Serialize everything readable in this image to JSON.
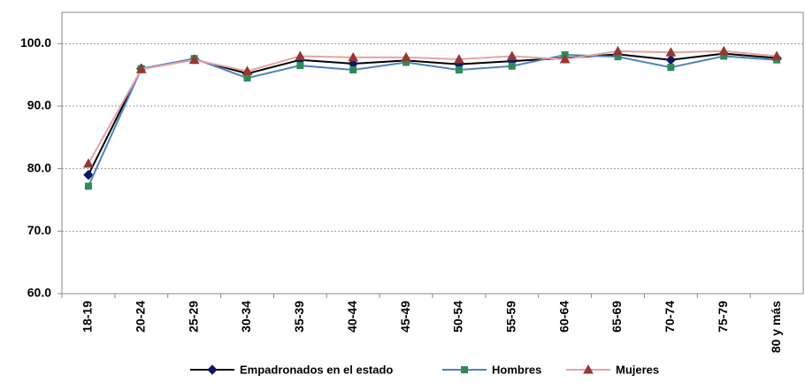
{
  "chart_data": {
    "type": "line",
    "categories": [
      "18-19",
      "20-24",
      "25-29",
      "30-34",
      "35-39",
      "40-44",
      "45-49",
      "50-54",
      "55-59",
      "60-64",
      "65-69",
      "70-74",
      "75-79",
      "80 y más"
    ],
    "series": [
      {
        "name": "Empadronados en el estado",
        "color": "#000000",
        "marker_color": "#0c1a66",
        "marker": "diamond",
        "values": [
          79.0,
          96.0,
          97.5,
          95.2,
          97.4,
          96.8,
          97.3,
          96.7,
          97.2,
          97.7,
          98.3,
          97.4,
          98.4,
          97.7
        ]
      },
      {
        "name": "Hombres",
        "color": "#4f81bd",
        "marker_color": "#2e8b57",
        "marker": "square",
        "values": [
          77.2,
          96.0,
          97.6,
          94.5,
          96.5,
          95.8,
          97.0,
          95.8,
          96.4,
          98.2,
          97.9,
          96.2,
          98.0,
          97.4
        ]
      },
      {
        "name": "Mujeres",
        "color": "#e6a3a3",
        "marker_color": "#953735",
        "marker": "triangle",
        "values": [
          80.8,
          95.9,
          97.4,
          95.6,
          98.0,
          97.8,
          97.8,
          97.5,
          98.0,
          97.5,
          98.8,
          98.6,
          98.8,
          98.0
        ]
      }
    ],
    "ylim": [
      60,
      105
    ],
    "yticks": [
      {
        "value": 60,
        "label": "60.0"
      },
      {
        "value": 70,
        "label": "70.0"
      },
      {
        "value": 80,
        "label": "80.0"
      },
      {
        "value": 90,
        "label": "90.0"
      },
      {
        "value": 100,
        "label": "100.0"
      }
    ],
    "grid": true,
    "legend": "bottom"
  }
}
